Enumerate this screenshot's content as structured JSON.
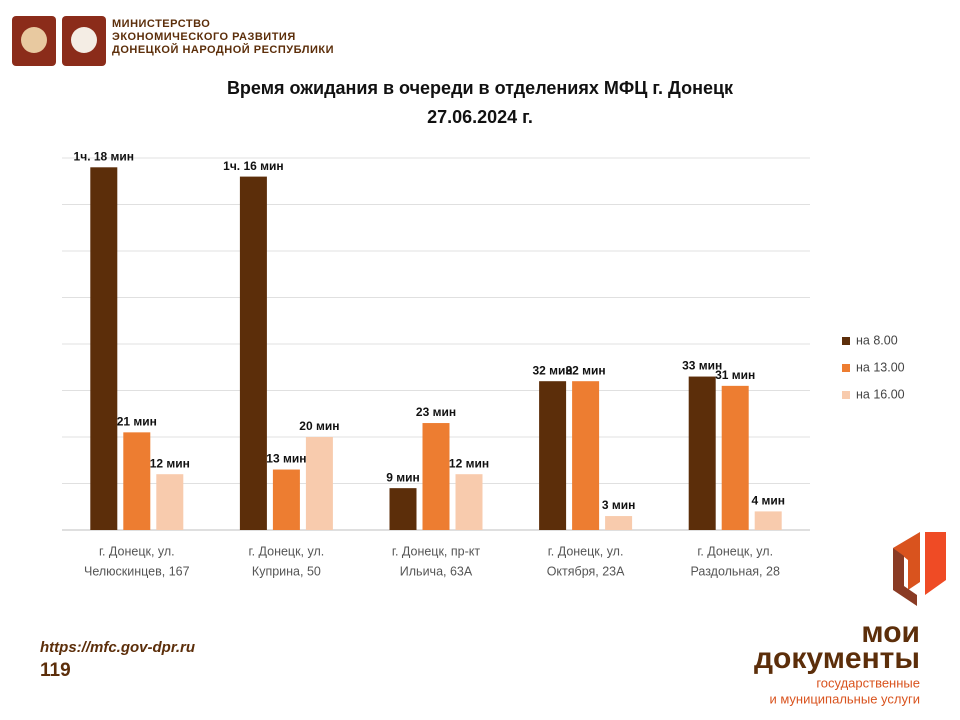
{
  "header": {
    "lines": [
      "МИНИСТЕРСТВО",
      "ЭКОНОМИЧЕСКОГО РАЗВИТИЯ",
      "ДОНЕЦКОЙ НАРОДНОЙ РЕСПУБЛИКИ"
    ]
  },
  "chart_data": {
    "type": "bar",
    "title": [
      "Время ожидания в очереди в отделениях МФЦ г. Донецк",
      "27.06.2024 г."
    ],
    "categories": [
      [
        "г. Донецк, ул.",
        "Челюскинцев, 167"
      ],
      [
        "г. Донецк, ул.",
        "Куприна, 50"
      ],
      [
        "г. Донецк, пр-кт",
        "Ильича, 63А"
      ],
      [
        "г. Донецк, ул.",
        "Октября, 23А"
      ],
      [
        "г. Донецк, ул.",
        "Раздольная, 28"
      ]
    ],
    "series": [
      {
        "name": "на 8.00",
        "color": "#5c2e0a",
        "values": [
          78,
          76,
          9,
          32,
          33
        ],
        "value_labels": [
          "1ч. 18 мин",
          "1ч. 16 мин",
          "9 мин",
          "32 мин",
          "33 мин"
        ]
      },
      {
        "name": "на 13.00",
        "color": "#ed7d31",
        "values": [
          21,
          13,
          23,
          32,
          31
        ],
        "value_labels": [
          "21 мин",
          "13 мин",
          "23 мин",
          "32 мин",
          "31 мин"
        ]
      },
      {
        "name": "на 16.00",
        "color": "#f8cbad",
        "values": [
          12,
          20,
          12,
          3,
          4
        ],
        "value_labels": [
          "12 мин",
          "20 мин",
          "12 мин",
          "3 мин",
          "4 мин"
        ]
      }
    ],
    "ylim": [
      0,
      80
    ],
    "yticks": [
      0,
      10,
      20,
      30,
      40,
      50,
      60,
      70,
      80
    ],
    "grid": true,
    "legend": "right"
  },
  "footer": {
    "url": "https://mfc.gov-dpr.ru",
    "page": "119"
  },
  "logo": {
    "brand": [
      "мои",
      "документы"
    ],
    "tagline": [
      "государственные",
      "и муниципальные услуги"
    ]
  }
}
